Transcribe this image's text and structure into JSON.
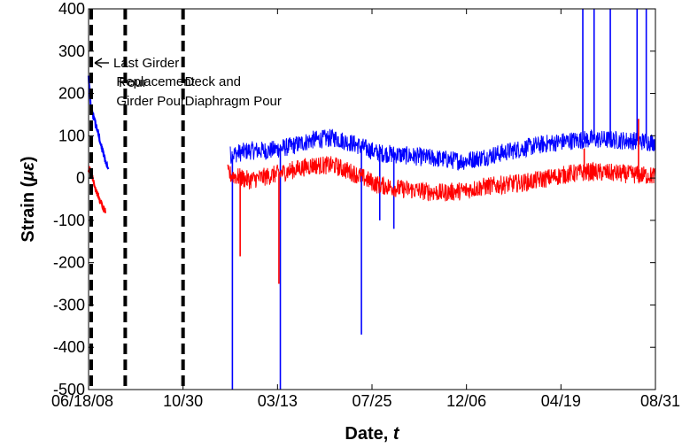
{
  "chart_data": {
    "type": "line",
    "xlabel_main": "Date,",
    "xlabel_symbol": "t",
    "ylabel_main": "Strain (",
    "ylabel_symbol": "με",
    "ylabel_close": ")",
    "x_start": "2008-06-18",
    "x_end": "2010-08-31",
    "xlim": [
      "2008-06-18",
      "2010-08-31"
    ],
    "ylim": [
      -500,
      400
    ],
    "x_ticks": [
      {
        "date": "2008-06-18",
        "label": "06/18/08"
      },
      {
        "date": "2008-10-30",
        "label": "10/30"
      },
      {
        "date": "2009-03-13",
        "label": "03/13"
      },
      {
        "date": "2009-07-25",
        "label": "07/25"
      },
      {
        "date": "2009-12-06",
        "label": "12/06"
      },
      {
        "date": "2010-04-19",
        "label": "04/19"
      },
      {
        "date": "2010-08-31",
        "label": "08/31"
      }
    ],
    "y_ticks": [
      400,
      300,
      200,
      100,
      0,
      -100,
      -200,
      -300,
      -400,
      -500
    ],
    "grid": false,
    "events": [
      {
        "date": "2008-06-18",
        "label_lines": [
          "Last Girder",
          "Pour"
        ]
      },
      {
        "date": "2008-08-09",
        "label_lines": [
          "Replacement",
          "Girder Pour"
        ]
      },
      {
        "date": "2008-10-30",
        "label_lines": [
          "Deck and",
          "Diaphragm Pour"
        ]
      }
    ],
    "series": [
      {
        "color": "#0000ff",
        "segments": [
          [
            [
              "2008-06-18",
              240
            ],
            [
              "2008-06-21",
              170
            ],
            [
              "2008-06-26",
              140
            ],
            [
              "2008-07-01",
              110
            ],
            [
              "2008-07-06",
              75
            ],
            [
              "2008-07-11",
              45
            ],
            [
              "2008-07-16",
              22
            ]
          ],
          [
            [
              "2009-01-05",
              55
            ],
            [
              "2009-02-01",
              65
            ],
            [
              "2009-03-01",
              65
            ],
            [
              "2009-04-01",
              75
            ],
            [
              "2009-05-01",
              90
            ],
            [
              "2009-06-01",
              95
            ],
            [
              "2009-07-01",
              80
            ],
            [
              "2009-08-01",
              60
            ],
            [
              "2009-09-01",
              55
            ],
            [
              "2009-10-01",
              50
            ],
            [
              "2009-11-01",
              45
            ],
            [
              "2009-12-01",
              40
            ],
            [
              "2010-01-01",
              50
            ],
            [
              "2010-02-01",
              62
            ],
            [
              "2010-03-01",
              72
            ],
            [
              "2010-04-01",
              82
            ],
            [
              "2010-05-01",
              88
            ],
            [
              "2010-06-01",
              92
            ],
            [
              "2010-07-01",
              90
            ],
            [
              "2010-08-01",
              88
            ],
            [
              "2010-08-31",
              85
            ]
          ]
        ],
        "spikes": [
          {
            "date": "2009-01-08",
            "value": -500
          },
          {
            "date": "2009-03-17",
            "value": -500
          },
          {
            "date": "2009-07-10",
            "value": -370
          },
          {
            "date": "2009-08-05",
            "value": -100
          },
          {
            "date": "2009-08-25",
            "value": -120
          },
          {
            "date": "2010-05-20",
            "value": 400
          },
          {
            "date": "2010-06-05",
            "value": 400
          },
          {
            "date": "2010-06-28",
            "value": 400
          },
          {
            "date": "2010-08-05",
            "value": 400
          },
          {
            "date": "2010-08-18",
            "value": 400
          }
        ]
      },
      {
        "color": "#ff0000",
        "segments": [
          [
            [
              "2008-06-18",
              20
            ],
            [
              "2008-06-22",
              15
            ],
            [
              "2008-06-27",
              -20
            ],
            [
              "2008-07-02",
              -45
            ],
            [
              "2008-07-07",
              -65
            ],
            [
              "2008-07-12",
              -80
            ]
          ],
          [
            [
              "2009-01-01",
              10
            ],
            [
              "2009-02-01",
              -5
            ],
            [
              "2009-03-01",
              5
            ],
            [
              "2009-04-01",
              18
            ],
            [
              "2009-05-01",
              30
            ],
            [
              "2009-06-01",
              30
            ],
            [
              "2009-07-01",
              10
            ],
            [
              "2009-08-01",
              -15
            ],
            [
              "2009-09-01",
              -25
            ],
            [
              "2009-10-01",
              -30
            ],
            [
              "2009-11-01",
              -35
            ],
            [
              "2009-12-01",
              -30
            ],
            [
              "2010-01-01",
              -20
            ],
            [
              "2010-02-01",
              -15
            ],
            [
              "2010-03-01",
              -10
            ],
            [
              "2010-04-01",
              0
            ],
            [
              "2010-05-01",
              10
            ],
            [
              "2010-06-01",
              15
            ],
            [
              "2010-07-01",
              12
            ],
            [
              "2010-08-01",
              8
            ],
            [
              "2010-08-31",
              5
            ]
          ]
        ],
        "spikes": [
          {
            "date": "2009-01-19",
            "value": -185
          },
          {
            "date": "2009-03-15",
            "value": -250
          },
          {
            "date": "2010-05-22",
            "value": 70
          },
          {
            "date": "2010-08-07",
            "value": 140
          }
        ]
      }
    ]
  }
}
